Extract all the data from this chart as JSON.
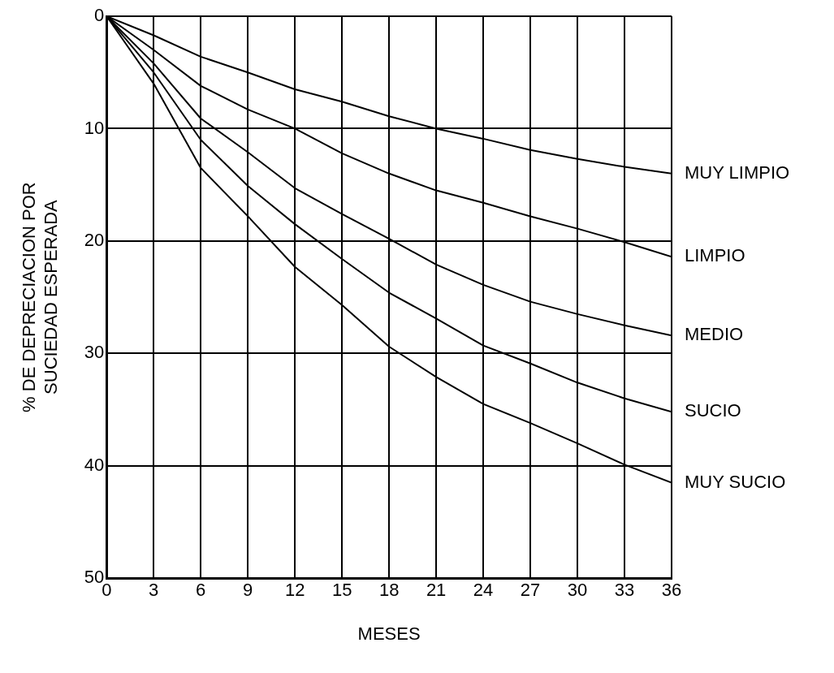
{
  "chart_data": {
    "type": "line",
    "xlabel": "MESES",
    "ylabel": "% DE DEPRECIACION POR\nSUCIEDAD ESPERADA",
    "x": [
      0,
      3,
      6,
      9,
      12,
      15,
      18,
      21,
      24,
      27,
      30,
      33,
      36
    ],
    "xlim": [
      0,
      36
    ],
    "xticks": [
      0,
      3,
      6,
      9,
      12,
      15,
      18,
      21,
      24,
      27,
      30,
      33,
      36
    ],
    "ylim": [
      50,
      0
    ],
    "yticks": [
      0,
      10,
      20,
      30,
      40,
      50
    ],
    "grid": true,
    "legend": false,
    "marker": "none",
    "line_style": "solid",
    "series": [
      {
        "name": "MUY LIMPIO",
        "color": "#000000",
        "values": [
          0,
          1.7,
          3.6,
          5.0,
          6.5,
          7.6,
          8.9,
          10.0,
          10.9,
          11.9,
          12.7,
          13.4,
          14.0
        ]
      },
      {
        "name": "LIMPIO",
        "color": "#000000",
        "values": [
          0,
          3.0,
          6.2,
          8.3,
          10.0,
          12.2,
          14.0,
          15.5,
          16.6,
          17.8,
          18.9,
          20.1,
          21.4
        ]
      },
      {
        "name": "MEDIO",
        "color": "#000000",
        "values": [
          0,
          4.2,
          9.1,
          12.1,
          15.3,
          17.6,
          19.8,
          22.1,
          23.9,
          25.4,
          26.5,
          27.5,
          28.4
        ]
      },
      {
        "name": "SUCIO",
        "color": "#000000",
        "values": [
          0,
          5.0,
          11.0,
          15.1,
          18.5,
          21.6,
          24.6,
          26.9,
          29.3,
          30.9,
          32.6,
          34.0,
          35.2
        ]
      },
      {
        "name": "MUY SUCIO",
        "color": "#000000",
        "values": [
          0,
          6.0,
          13.5,
          17.8,
          22.3,
          25.7,
          29.4,
          32.1,
          34.5,
          36.2,
          38.0,
          39.9,
          41.5
        ]
      }
    ]
  }
}
